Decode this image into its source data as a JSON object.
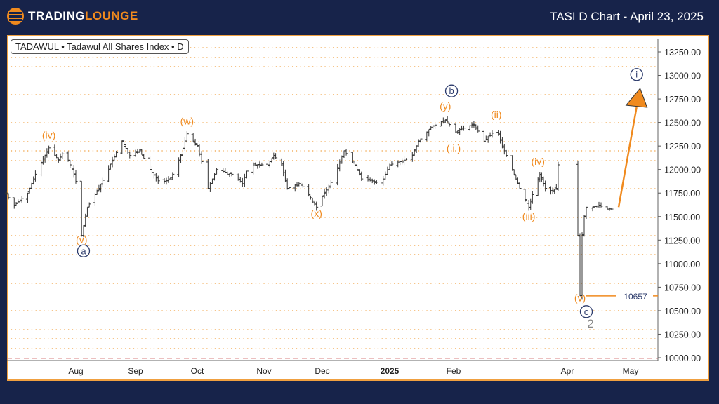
{
  "header": {
    "logo_part1": "TRADING",
    "logo_part2": "LOUNGE",
    "title": "TASI D Chart - April 23, 2025"
  },
  "legend": "TADAWUL • Tadawul All Shares Index • D",
  "colors": {
    "background": "#17234a",
    "accent": "#f08a1e",
    "bar": "#333333",
    "navy": "#2b3a6b"
  },
  "chart_data": {
    "type": "ohlc-bar",
    "title": "TASI D Chart - April 23, 2025",
    "symbol": "TADAWUL • Tadawul All Shares Index • D",
    "ylim": [
      10000,
      13250
    ],
    "yticks": [
      "10000.00",
      "10250.00",
      "10500.00",
      "10750.00",
      "11000.00",
      "11250.00",
      "11500.00",
      "11750.00",
      "12000.00",
      "12250.00",
      "12500.00",
      "12750.00",
      "13000.00",
      "13250.00"
    ],
    "xticks": [
      [
        "2024-08-01",
        "Aug"
      ],
      [
        "2024-09-01",
        "Sep"
      ],
      [
        "2024-10-01",
        "Oct"
      ],
      [
        "2024-11-01",
        "Nov"
      ],
      [
        "2024-12-01",
        "Dec"
      ],
      [
        "2025-01-01",
        "2025"
      ],
      [
        "2025-02-01",
        "Feb"
      ],
      [
        "2025-04-01",
        "Apr"
      ],
      [
        "2025-05-01",
        "May"
      ]
    ],
    "price_path": [
      [
        "2024-06-26",
        11750
      ],
      [
        "2024-06-29",
        11600
      ],
      [
        "2024-07-07",
        11750
      ],
      [
        "2024-07-12",
        12000
      ],
      [
        "2024-07-18",
        12230
      ],
      [
        "2024-07-23",
        12100
      ],
      [
        "2024-07-26",
        12200
      ],
      [
        "2024-07-31",
        11950
      ],
      [
        "2024-08-02",
        11800
      ],
      [
        "2024-08-04",
        11300
      ],
      [
        "2024-08-07",
        11600
      ],
      [
        "2024-08-13",
        11800
      ],
      [
        "2024-08-20",
        12100
      ],
      [
        "2024-08-25",
        12300
      ],
      [
        "2024-08-29",
        12150
      ],
      [
        "2024-09-03",
        12200
      ],
      [
        "2024-09-08",
        12000
      ],
      [
        "2024-09-13",
        11850
      ],
      [
        "2024-09-18",
        11900
      ],
      [
        "2024-09-23",
        12150
      ],
      [
        "2024-09-26",
        12380
      ],
      [
        "2024-10-01",
        12250
      ],
      [
        "2024-10-04",
        12000
      ],
      [
        "2024-10-06",
        11800
      ],
      [
        "2024-10-10",
        12000
      ],
      [
        "2024-10-17",
        11950
      ],
      [
        "2024-10-22",
        11850
      ],
      [
        "2024-10-25",
        12050
      ],
      [
        "2024-10-30",
        12050
      ],
      [
        "2024-11-03",
        12050
      ],
      [
        "2024-11-06",
        12150
      ],
      [
        "2024-11-10",
        12050
      ],
      [
        "2024-11-13",
        11800
      ],
      [
        "2024-11-19",
        11850
      ],
      [
        "2024-11-22",
        11800
      ],
      [
        "2024-11-28",
        11600
      ],
      [
        "2024-12-06",
        11900
      ],
      [
        "2024-12-11",
        12200
      ],
      [
        "2024-12-16",
        12050
      ],
      [
        "2024-12-19",
        11900
      ],
      [
        "2024-12-24",
        11880
      ],
      [
        "2024-12-28",
        11850
      ],
      [
        "2025-01-01",
        12050
      ],
      [
        "2025-01-08",
        12100
      ],
      [
        "2025-01-12",
        12150
      ],
      [
        "2025-01-15",
        12300
      ],
      [
        "2025-01-21",
        12450
      ],
      [
        "2025-01-28",
        12530
      ],
      [
        "2025-02-02",
        12400
      ],
      [
        "2025-02-07",
        12450
      ],
      [
        "2025-02-11",
        12480
      ],
      [
        "2025-02-16",
        12300
      ],
      [
        "2025-02-22",
        12430
      ],
      [
        "2025-02-25",
        12250
      ],
      [
        "2025-03-01",
        12050
      ],
      [
        "2025-03-06",
        11800
      ],
      [
        "2025-03-11",
        11600
      ],
      [
        "2025-03-14",
        11800
      ],
      [
        "2025-03-17",
        11950
      ],
      [
        "2025-03-21",
        11750
      ],
      [
        "2025-03-26",
        11800
      ],
      [
        "2025-03-27",
        12050
      ],
      [
        "2025-03-28",
        11900
      ],
      [
        "2025-04-06",
        11300
      ],
      [
        "2025-04-07",
        10660
      ],
      [
        "2025-04-08",
        11300
      ],
      [
        "2025-04-09",
        11500
      ],
      [
        "2025-04-10",
        11600
      ],
      [
        "2025-04-13",
        11600
      ],
      [
        "2025-04-16",
        11620
      ],
      [
        "2025-04-20",
        11580
      ],
      [
        "2025-04-22",
        11580
      ]
    ],
    "annotations": [
      {
        "text": "(iv)",
        "date": "2024-07-18",
        "price": 12330,
        "style": "orange"
      },
      {
        "text": "(v)",
        "date": "2024-08-04",
        "price": 11220,
        "style": "orange"
      },
      {
        "text": "a",
        "date": "2024-08-05",
        "price": 11105,
        "style": "circle"
      },
      {
        "text": "(w)",
        "date": "2024-09-26",
        "price": 12480,
        "style": "orange"
      },
      {
        "text": "(x)",
        "date": "2024-11-28",
        "price": 11500,
        "style": "orange"
      },
      {
        "text": "(y)",
        "date": "2025-01-28",
        "price": 12640,
        "style": "orange"
      },
      {
        "text": "b",
        "date": "2025-01-31",
        "price": 12805,
        "style": "circle"
      },
      {
        "text": "( i )",
        "date": "2025-02-01",
        "price": 12190,
        "style": "orange"
      },
      {
        "text": "(ii)",
        "date": "2025-02-22",
        "price": 12550,
        "style": "orange"
      },
      {
        "text": "(iii)",
        "date": "2025-03-11",
        "price": 11470,
        "style": "orange"
      },
      {
        "text": "(iv)",
        "date": "2025-03-16",
        "price": 12050,
        "style": "orange"
      },
      {
        "text": "(v)",
        "date": "2025-04-07",
        "price": 10600,
        "style": "orange"
      },
      {
        "text": "c",
        "date": "2025-04-10",
        "price": 10460,
        "style": "circle"
      },
      {
        "text": "2",
        "date": "2025-04-12",
        "price": 10320,
        "style": "gray"
      },
      {
        "text": "i",
        "date": "2025-05-04",
        "price": 12980,
        "style": "circle"
      }
    ],
    "projection_arrow": {
      "from": [
        "2025-04-22",
        11600
      ],
      "to": [
        "2025-05-05",
        12750
      ]
    },
    "level_line": {
      "price": 10657,
      "label": "10657"
    }
  }
}
